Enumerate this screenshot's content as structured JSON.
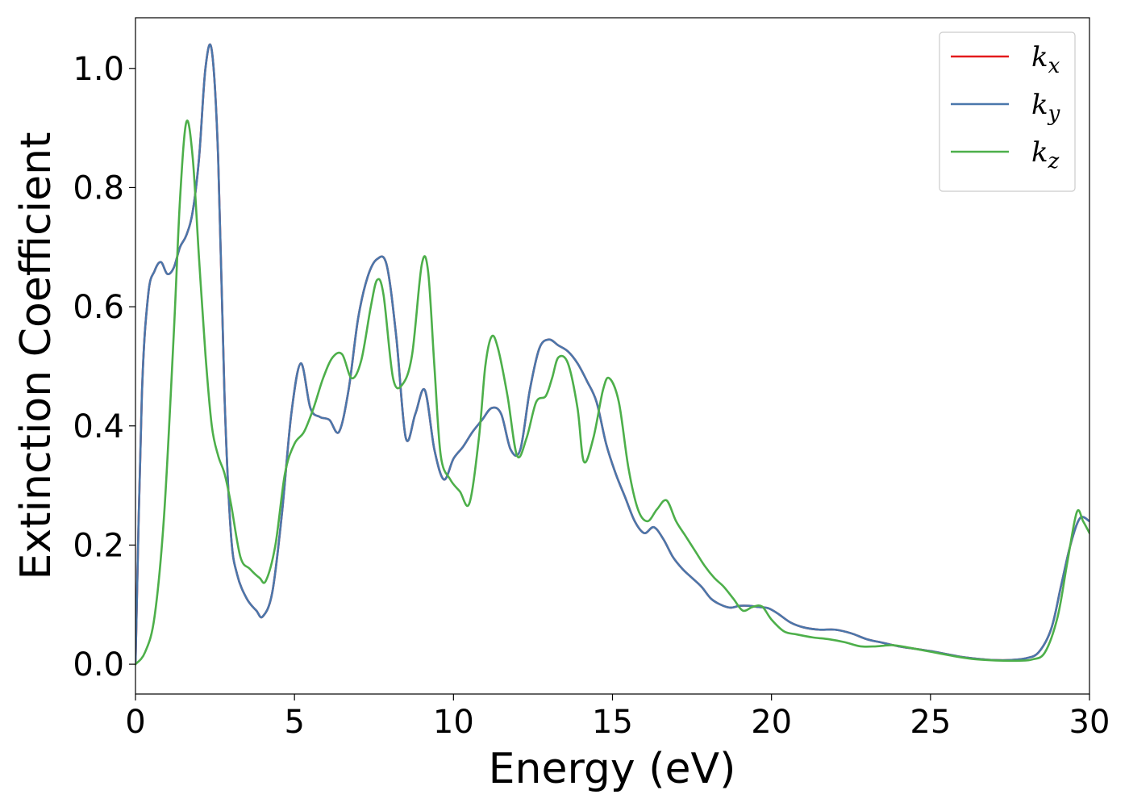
{
  "chart_data": {
    "type": "line",
    "xlabel": "Energy (eV)",
    "ylabel": "Extinction Coefficient",
    "xlim": [
      0,
      30
    ],
    "ylim": [
      -0.05,
      1.085
    ],
    "xticks": [
      0,
      5,
      10,
      15,
      20,
      25,
      30
    ],
    "xtick_labels": [
      "0",
      "5",
      "10",
      "15",
      "20",
      "25",
      "30"
    ],
    "yticks": [
      0.0,
      0.2,
      0.4,
      0.6,
      0.8,
      1.0
    ],
    "ytick_labels": [
      "0.0",
      "0.2",
      "0.4",
      "0.6",
      "0.8",
      "1.0"
    ],
    "grid": false,
    "legend_position": "top-right",
    "series": [
      {
        "name": "kx",
        "legend_base": "k",
        "legend_sub": "x",
        "color": "#e41a1c",
        "x": [
          0,
          0.2,
          0.4,
          0.6,
          0.8,
          1.0,
          1.2,
          1.4,
          1.6,
          1.8,
          2.0,
          2.2,
          2.4,
          2.6,
          2.8,
          3.0,
          3.2,
          3.5,
          3.8,
          4.0,
          4.3,
          4.6,
          4.9,
          5.2,
          5.5,
          5.8,
          6.1,
          6.4,
          6.7,
          7.0,
          7.3,
          7.6,
          7.9,
          8.2,
          8.5,
          8.8,
          9.1,
          9.4,
          9.7,
          10.0,
          10.3,
          10.6,
          10.9,
          11.2,
          11.5,
          11.8,
          12.1,
          12.4,
          12.7,
          13.0,
          13.3,
          13.6,
          13.9,
          14.2,
          14.5,
          14.8,
          15.1,
          15.4,
          15.7,
          16.0,
          16.3,
          16.6,
          16.9,
          17.2,
          17.5,
          17.8,
          18.1,
          18.4,
          18.7,
          19.0,
          19.3,
          19.6,
          19.9,
          20.2,
          20.6,
          21.0,
          21.5,
          22.0,
          22.5,
          23.0,
          23.5,
          24.0,
          24.5,
          25.0,
          25.5,
          26.0,
          26.5,
          27.0,
          27.5,
          28.0,
          28.4,
          28.8,
          29.1,
          29.4,
          29.7,
          30.0
        ],
        "y": [
          0.0,
          0.45,
          0.62,
          0.66,
          0.675,
          0.655,
          0.665,
          0.7,
          0.72,
          0.76,
          0.85,
          1.0,
          1.03,
          0.85,
          0.45,
          0.22,
          0.15,
          0.11,
          0.09,
          0.08,
          0.12,
          0.25,
          0.42,
          0.505,
          0.43,
          0.415,
          0.41,
          0.39,
          0.46,
          0.58,
          0.65,
          0.68,
          0.67,
          0.55,
          0.38,
          0.42,
          0.46,
          0.36,
          0.31,
          0.345,
          0.365,
          0.39,
          0.41,
          0.43,
          0.42,
          0.36,
          0.36,
          0.46,
          0.53,
          0.545,
          0.535,
          0.525,
          0.505,
          0.475,
          0.44,
          0.37,
          0.32,
          0.28,
          0.24,
          0.22,
          0.23,
          0.21,
          0.18,
          0.16,
          0.145,
          0.13,
          0.11,
          0.1,
          0.095,
          0.098,
          0.098,
          0.096,
          0.094,
          0.085,
          0.07,
          0.062,
          0.058,
          0.058,
          0.052,
          0.042,
          0.036,
          0.03,
          0.026,
          0.022,
          0.017,
          0.012,
          0.009,
          0.007,
          0.007,
          0.01,
          0.02,
          0.06,
          0.13,
          0.2,
          0.245,
          0.24
        ]
      },
      {
        "name": "ky",
        "legend_base": "k",
        "legend_sub": "y",
        "color": "#4a77ab",
        "x": [
          0,
          0.2,
          0.4,
          0.6,
          0.8,
          1.0,
          1.2,
          1.4,
          1.6,
          1.8,
          2.0,
          2.2,
          2.4,
          2.6,
          2.8,
          3.0,
          3.2,
          3.5,
          3.8,
          4.0,
          4.3,
          4.6,
          4.9,
          5.2,
          5.5,
          5.8,
          6.1,
          6.4,
          6.7,
          7.0,
          7.3,
          7.6,
          7.9,
          8.2,
          8.5,
          8.8,
          9.1,
          9.4,
          9.7,
          10.0,
          10.3,
          10.6,
          10.9,
          11.2,
          11.5,
          11.8,
          12.1,
          12.4,
          12.7,
          13.0,
          13.3,
          13.6,
          13.9,
          14.2,
          14.5,
          14.8,
          15.1,
          15.4,
          15.7,
          16.0,
          16.3,
          16.6,
          16.9,
          17.2,
          17.5,
          17.8,
          18.1,
          18.4,
          18.7,
          19.0,
          19.3,
          19.6,
          19.9,
          20.2,
          20.6,
          21.0,
          21.5,
          22.0,
          22.5,
          23.0,
          23.5,
          24.0,
          24.5,
          25.0,
          25.5,
          26.0,
          26.5,
          27.0,
          27.5,
          28.0,
          28.4,
          28.8,
          29.1,
          29.4,
          29.7,
          30.0
        ],
        "y": [
          0.0,
          0.45,
          0.62,
          0.66,
          0.675,
          0.655,
          0.665,
          0.7,
          0.72,
          0.76,
          0.85,
          1.0,
          1.03,
          0.85,
          0.45,
          0.22,
          0.15,
          0.11,
          0.09,
          0.08,
          0.12,
          0.25,
          0.42,
          0.505,
          0.43,
          0.415,
          0.41,
          0.39,
          0.46,
          0.58,
          0.65,
          0.68,
          0.67,
          0.55,
          0.38,
          0.42,
          0.46,
          0.36,
          0.31,
          0.345,
          0.365,
          0.39,
          0.41,
          0.43,
          0.42,
          0.36,
          0.36,
          0.46,
          0.53,
          0.545,
          0.535,
          0.525,
          0.505,
          0.475,
          0.44,
          0.37,
          0.32,
          0.28,
          0.24,
          0.22,
          0.23,
          0.21,
          0.18,
          0.16,
          0.145,
          0.13,
          0.11,
          0.1,
          0.095,
          0.098,
          0.098,
          0.096,
          0.094,
          0.085,
          0.07,
          0.062,
          0.058,
          0.058,
          0.052,
          0.042,
          0.036,
          0.03,
          0.026,
          0.022,
          0.017,
          0.012,
          0.009,
          0.007,
          0.007,
          0.01,
          0.02,
          0.06,
          0.13,
          0.2,
          0.245,
          0.24
        ]
      },
      {
        "name": "kz",
        "legend_base": "k",
        "legend_sub": "z",
        "color": "#4daf4a",
        "x": [
          0,
          0.3,
          0.6,
          0.9,
          1.2,
          1.4,
          1.6,
          1.8,
          2.0,
          2.2,
          2.4,
          2.6,
          2.8,
          3.0,
          3.3,
          3.6,
          3.9,
          4.1,
          4.4,
          4.7,
          5.0,
          5.3,
          5.6,
          5.9,
          6.2,
          6.5,
          6.8,
          7.1,
          7.4,
          7.6,
          7.8,
          8.1,
          8.4,
          8.7,
          9.0,
          9.2,
          9.4,
          9.6,
          9.9,
          10.2,
          10.5,
          10.8,
          11.0,
          11.2,
          11.4,
          11.7,
          12.0,
          12.3,
          12.6,
          12.9,
          13.1,
          13.3,
          13.6,
          13.9,
          14.1,
          14.4,
          14.7,
          14.9,
          15.2,
          15.5,
          15.8,
          16.1,
          16.4,
          16.7,
          17.0,
          17.3,
          17.6,
          17.9,
          18.2,
          18.5,
          18.8,
          19.1,
          19.4,
          19.7,
          20.0,
          20.4,
          20.8,
          21.3,
          21.8,
          22.3,
          22.8,
          23.3,
          23.8,
          24.3,
          24.8,
          25.3,
          25.8,
          26.3,
          26.8,
          27.3,
          27.8,
          28.2,
          28.6,
          29.0,
          29.3,
          29.6,
          29.8,
          30.0
        ],
        "y": [
          0.0,
          0.02,
          0.08,
          0.25,
          0.55,
          0.78,
          0.91,
          0.85,
          0.68,
          0.52,
          0.4,
          0.35,
          0.32,
          0.27,
          0.18,
          0.16,
          0.145,
          0.14,
          0.2,
          0.32,
          0.37,
          0.39,
          0.43,
          0.48,
          0.515,
          0.52,
          0.48,
          0.51,
          0.6,
          0.645,
          0.62,
          0.48,
          0.47,
          0.52,
          0.67,
          0.66,
          0.5,
          0.35,
          0.31,
          0.29,
          0.27,
          0.38,
          0.5,
          0.55,
          0.53,
          0.45,
          0.35,
          0.38,
          0.44,
          0.45,
          0.48,
          0.515,
          0.505,
          0.43,
          0.34,
          0.38,
          0.46,
          0.48,
          0.44,
          0.33,
          0.26,
          0.24,
          0.26,
          0.275,
          0.24,
          0.215,
          0.19,
          0.165,
          0.145,
          0.13,
          0.11,
          0.09,
          0.096,
          0.097,
          0.075,
          0.055,
          0.05,
          0.045,
          0.042,
          0.037,
          0.03,
          0.03,
          0.032,
          0.028,
          0.023,
          0.018,
          0.013,
          0.009,
          0.007,
          0.006,
          0.006,
          0.008,
          0.02,
          0.08,
          0.17,
          0.255,
          0.24,
          0.22
        ]
      }
    ]
  }
}
